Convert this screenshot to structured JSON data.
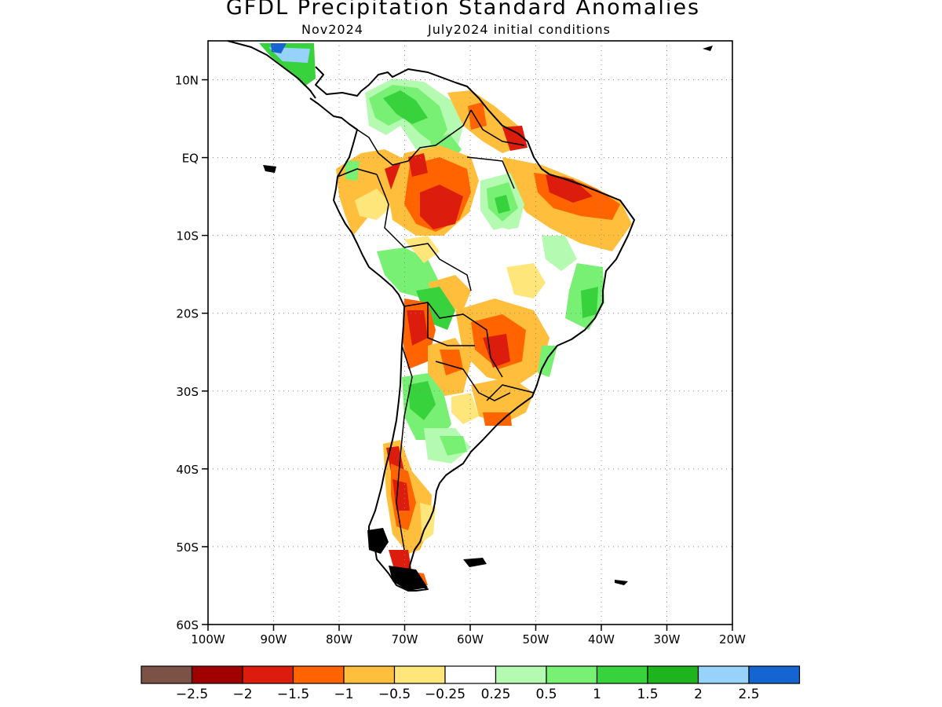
{
  "title": "GFDL Precipitation Standard Anomalies",
  "subtitle_left": "Nov2024",
  "subtitle_right": "July2024 initial conditions",
  "map": {
    "lon_range": [
      -100,
      -20
    ],
    "lat_range": [
      -60,
      15
    ],
    "lat_ticks": [
      {
        "value": 10,
        "label": "10N"
      },
      {
        "value": 0,
        "label": "EQ"
      },
      {
        "value": -10,
        "label": "10S"
      },
      {
        "value": -20,
        "label": "20S"
      },
      {
        "value": -30,
        "label": "30S"
      },
      {
        "value": -40,
        "label": "40S"
      },
      {
        "value": -50,
        "label": "50S"
      },
      {
        "value": -60,
        "label": "60S"
      }
    ],
    "lon_ticks": [
      {
        "value": -100,
        "label": "100W"
      },
      {
        "value": -90,
        "label": "90W"
      },
      {
        "value": -80,
        "label": "80W"
      },
      {
        "value": -70,
        "label": "70W"
      },
      {
        "value": -60,
        "label": "60W"
      },
      {
        "value": -50,
        "label": "50W"
      },
      {
        "value": -40,
        "label": "40W"
      },
      {
        "value": -30,
        "label": "30W"
      },
      {
        "value": -20,
        "label": "20W"
      }
    ],
    "grid": "dotted"
  },
  "colorbar": {
    "colors": [
      "#7b5245",
      "#a00000",
      "#dc1c0c",
      "#ff6400",
      "#ffbe3c",
      "#ffe67a",
      "#ffffff",
      "#b4fab0",
      "#78f073",
      "#37d23c",
      "#1eb41e",
      "#96d2fa",
      "#1464d2"
    ],
    "labels": [
      "-2.5",
      "-2",
      "-1.5",
      "-1",
      "-0.5",
      "-0.25",
      "0.25",
      "0.5",
      "1",
      "1.5",
      "2",
      "2.5"
    ]
  }
}
